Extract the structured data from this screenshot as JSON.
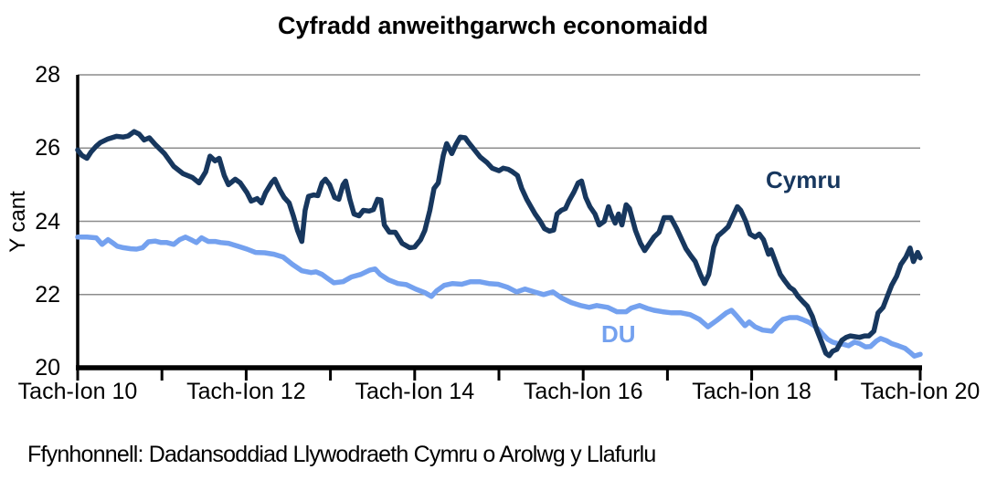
{
  "chart_data": {
    "type": "line",
    "title": "Cyfradd anweithgarwch economaidd",
    "ylabel": "Y cant",
    "source": "Ffynhonnell: Dadansoddiad Llywodraeth Cymru o Arolwg y Llafurlu",
    "xlim": [
      10,
      20
    ],
    "ylim": [
      20,
      28
    ],
    "y_ticks": [
      20,
      22,
      24,
      26,
      28
    ],
    "x_minor_tick_step": 1,
    "x_tick_labels": [
      {
        "t": 10,
        "label": "Tach-Ion 10"
      },
      {
        "t": 12,
        "label": "Tach-Ion 12"
      },
      {
        "t": 14,
        "label": "Tach-Ion 14"
      },
      {
        "t": 16,
        "label": "Tach-Ion 16"
      },
      {
        "t": 18,
        "label": "Tach-Ion 18"
      },
      {
        "t": 20,
        "label": "Tach-Ion 20"
      }
    ],
    "gridline_color": "#8C8C8C",
    "axis_color": "#000000",
    "legend_position": "inline-labels",
    "grid": true,
    "series": [
      {
        "name": "Cymru",
        "color": "#17375E",
        "points": [
          [
            10.0,
            25.95
          ],
          [
            10.05,
            25.8
          ],
          [
            10.11,
            25.72
          ],
          [
            10.16,
            25.9
          ],
          [
            10.22,
            26.05
          ],
          [
            10.27,
            26.15
          ],
          [
            10.36,
            26.25
          ],
          [
            10.46,
            26.32
          ],
          [
            10.54,
            26.3
          ],
          [
            10.6,
            26.33
          ],
          [
            10.67,
            26.45
          ],
          [
            10.73,
            26.38
          ],
          [
            10.79,
            26.22
          ],
          [
            10.85,
            26.28
          ],
          [
            10.92,
            26.1
          ],
          [
            11.03,
            25.85
          ],
          [
            11.14,
            25.5
          ],
          [
            11.25,
            25.3
          ],
          [
            11.36,
            25.2
          ],
          [
            11.44,
            25.05
          ],
          [
            11.52,
            25.35
          ],
          [
            11.57,
            25.78
          ],
          [
            11.63,
            25.65
          ],
          [
            11.68,
            25.72
          ],
          [
            11.74,
            25.25
          ],
          [
            11.79,
            25.0
          ],
          [
            11.87,
            25.15
          ],
          [
            11.93,
            25.05
          ],
          [
            12.01,
            24.78
          ],
          [
            12.06,
            24.55
          ],
          [
            12.13,
            24.62
          ],
          [
            12.18,
            24.5
          ],
          [
            12.23,
            24.78
          ],
          [
            12.3,
            25.05
          ],
          [
            12.34,
            25.15
          ],
          [
            12.4,
            24.85
          ],
          [
            12.45,
            24.65
          ],
          [
            12.51,
            24.5
          ],
          [
            12.56,
            24.15
          ],
          [
            12.61,
            23.75
          ],
          [
            12.66,
            23.45
          ],
          [
            12.7,
            24.3
          ],
          [
            12.74,
            24.68
          ],
          [
            12.8,
            24.72
          ],
          [
            12.85,
            24.7
          ],
          [
            12.9,
            25.05
          ],
          [
            12.94,
            25.15
          ],
          [
            12.99,
            25.0
          ],
          [
            13.05,
            24.65
          ],
          [
            13.1,
            24.6
          ],
          [
            13.15,
            25.0
          ],
          [
            13.18,
            25.1
          ],
          [
            13.23,
            24.6
          ],
          [
            13.28,
            24.2
          ],
          [
            13.34,
            24.15
          ],
          [
            13.39,
            24.3
          ],
          [
            13.46,
            24.28
          ],
          [
            13.51,
            24.32
          ],
          [
            13.56,
            24.6
          ],
          [
            13.6,
            24.58
          ],
          [
            13.64,
            23.9
          ],
          [
            13.7,
            23.7
          ],
          [
            13.77,
            23.7
          ],
          [
            13.85,
            23.4
          ],
          [
            13.94,
            23.28
          ],
          [
            14.0,
            23.3
          ],
          [
            14.07,
            23.5
          ],
          [
            14.12,
            23.75
          ],
          [
            14.18,
            24.3
          ],
          [
            14.23,
            24.9
          ],
          [
            14.28,
            25.05
          ],
          [
            14.34,
            25.8
          ],
          [
            14.38,
            26.12
          ],
          [
            14.44,
            25.85
          ],
          [
            14.49,
            26.1
          ],
          [
            14.54,
            26.3
          ],
          [
            14.6,
            26.28
          ],
          [
            14.64,
            26.15
          ],
          [
            14.71,
            25.95
          ],
          [
            14.78,
            25.75
          ],
          [
            14.86,
            25.6
          ],
          [
            14.92,
            25.45
          ],
          [
            15.0,
            25.38
          ],
          [
            15.05,
            25.45
          ],
          [
            15.11,
            25.42
          ],
          [
            15.16,
            25.35
          ],
          [
            15.22,
            25.25
          ],
          [
            15.27,
            24.9
          ],
          [
            15.33,
            24.6
          ],
          [
            15.38,
            24.4
          ],
          [
            15.43,
            24.2
          ],
          [
            15.49,
            24.0
          ],
          [
            15.54,
            23.8
          ],
          [
            15.6,
            23.73
          ],
          [
            15.65,
            23.76
          ],
          [
            15.69,
            24.2
          ],
          [
            15.74,
            24.3
          ],
          [
            15.79,
            24.35
          ],
          [
            15.83,
            24.55
          ],
          [
            15.89,
            24.8
          ],
          [
            15.94,
            25.05
          ],
          [
            15.98,
            25.1
          ],
          [
            16.03,
            24.65
          ],
          [
            16.08,
            24.4
          ],
          [
            16.14,
            24.2
          ],
          [
            16.19,
            23.9
          ],
          [
            16.25,
            24.0
          ],
          [
            16.3,
            24.4
          ],
          [
            16.33,
            24.2
          ],
          [
            16.38,
            23.95
          ],
          [
            16.42,
            24.2
          ],
          [
            16.46,
            23.9
          ],
          [
            16.51,
            24.45
          ],
          [
            16.55,
            24.35
          ],
          [
            16.62,
            23.75
          ],
          [
            16.68,
            23.4
          ],
          [
            16.73,
            23.2
          ],
          [
            16.79,
            23.4
          ],
          [
            16.84,
            23.57
          ],
          [
            16.9,
            23.7
          ],
          [
            16.96,
            24.1
          ],
          [
            17.04,
            24.1
          ],
          [
            17.11,
            23.8
          ],
          [
            17.17,
            23.5
          ],
          [
            17.22,
            23.25
          ],
          [
            17.28,
            23.05
          ],
          [
            17.33,
            22.9
          ],
          [
            17.39,
            22.55
          ],
          [
            17.44,
            22.3
          ],
          [
            17.49,
            22.55
          ],
          [
            17.55,
            23.3
          ],
          [
            17.6,
            23.6
          ],
          [
            17.66,
            23.72
          ],
          [
            17.72,
            23.85
          ],
          [
            17.78,
            24.15
          ],
          [
            17.83,
            24.4
          ],
          [
            17.87,
            24.3
          ],
          [
            17.93,
            24.0
          ],
          [
            17.98,
            23.65
          ],
          [
            18.04,
            23.57
          ],
          [
            18.09,
            23.65
          ],
          [
            18.14,
            23.5
          ],
          [
            18.2,
            23.1
          ],
          [
            18.23,
            23.22
          ],
          [
            18.29,
            22.85
          ],
          [
            18.34,
            22.55
          ],
          [
            18.39,
            22.38
          ],
          [
            18.45,
            22.2
          ],
          [
            18.5,
            22.12
          ],
          [
            18.55,
            21.95
          ],
          [
            18.61,
            21.8
          ],
          [
            18.66,
            21.68
          ],
          [
            18.72,
            21.4
          ],
          [
            18.77,
            21.05
          ],
          [
            18.83,
            20.7
          ],
          [
            18.88,
            20.4
          ],
          [
            18.92,
            20.33
          ],
          [
            18.96,
            20.45
          ],
          [
            19.01,
            20.5
          ],
          [
            19.07,
            20.75
          ],
          [
            19.12,
            20.83
          ],
          [
            19.17,
            20.87
          ],
          [
            19.28,
            20.83
          ],
          [
            19.34,
            20.87
          ],
          [
            19.39,
            20.87
          ],
          [
            19.45,
            21.0
          ],
          [
            19.5,
            21.5
          ],
          [
            19.56,
            21.65
          ],
          [
            19.61,
            21.95
          ],
          [
            19.66,
            22.25
          ],
          [
            19.72,
            22.5
          ],
          [
            19.77,
            22.82
          ],
          [
            19.83,
            23.02
          ],
          [
            19.88,
            23.27
          ],
          [
            19.92,
            22.9
          ],
          [
            19.97,
            23.15
          ],
          [
            20.0,
            23.0
          ]
        ]
      },
      {
        "name": "DU",
        "color": "#74A1EF",
        "points": [
          [
            10.0,
            23.57
          ],
          [
            10.11,
            23.57
          ],
          [
            10.22,
            23.55
          ],
          [
            10.29,
            23.37
          ],
          [
            10.36,
            23.5
          ],
          [
            10.41,
            23.42
          ],
          [
            10.47,
            23.32
          ],
          [
            10.54,
            23.28
          ],
          [
            10.63,
            23.25
          ],
          [
            10.7,
            23.24
          ],
          [
            10.77,
            23.28
          ],
          [
            10.84,
            23.44
          ],
          [
            10.92,
            23.46
          ],
          [
            10.99,
            23.42
          ],
          [
            11.06,
            23.42
          ],
          [
            11.14,
            23.37
          ],
          [
            11.21,
            23.5
          ],
          [
            11.28,
            23.57
          ],
          [
            11.36,
            23.48
          ],
          [
            11.41,
            23.42
          ],
          [
            11.47,
            23.55
          ],
          [
            11.55,
            23.45
          ],
          [
            11.63,
            23.45
          ],
          [
            11.7,
            23.42
          ],
          [
            11.79,
            23.4
          ],
          [
            11.9,
            23.32
          ],
          [
            12.01,
            23.24
          ],
          [
            12.11,
            23.15
          ],
          [
            12.22,
            23.14
          ],
          [
            12.33,
            23.1
          ],
          [
            12.44,
            23.02
          ],
          [
            12.55,
            22.82
          ],
          [
            12.66,
            22.65
          ],
          [
            12.77,
            22.6
          ],
          [
            12.83,
            22.62
          ],
          [
            12.9,
            22.55
          ],
          [
            12.96,
            22.45
          ],
          [
            13.04,
            22.32
          ],
          [
            13.15,
            22.35
          ],
          [
            13.25,
            22.48
          ],
          [
            13.36,
            22.55
          ],
          [
            13.47,
            22.67
          ],
          [
            13.53,
            22.7
          ],
          [
            13.59,
            22.55
          ],
          [
            13.69,
            22.4
          ],
          [
            13.8,
            22.3
          ],
          [
            13.9,
            22.27
          ],
          [
            14.01,
            22.15
          ],
          [
            14.12,
            22.05
          ],
          [
            14.2,
            21.95
          ],
          [
            14.26,
            22.1
          ],
          [
            14.35,
            22.25
          ],
          [
            14.45,
            22.3
          ],
          [
            14.56,
            22.28
          ],
          [
            14.66,
            22.35
          ],
          [
            14.77,
            22.35
          ],
          [
            14.88,
            22.3
          ],
          [
            14.99,
            22.28
          ],
          [
            15.1,
            22.2
          ],
          [
            15.21,
            22.07
          ],
          [
            15.31,
            22.15
          ],
          [
            15.42,
            22.07
          ],
          [
            15.53,
            22.0
          ],
          [
            15.64,
            22.07
          ],
          [
            15.75,
            21.9
          ],
          [
            15.86,
            21.78
          ],
          [
            15.97,
            21.7
          ],
          [
            16.07,
            21.65
          ],
          [
            16.16,
            21.7
          ],
          [
            16.29,
            21.65
          ],
          [
            16.4,
            21.53
          ],
          [
            16.51,
            21.53
          ],
          [
            16.57,
            21.63
          ],
          [
            16.67,
            21.7
          ],
          [
            16.76,
            21.62
          ],
          [
            16.84,
            21.57
          ],
          [
            16.94,
            21.53
          ],
          [
            17.05,
            21.5
          ],
          [
            17.16,
            21.5
          ],
          [
            17.27,
            21.45
          ],
          [
            17.38,
            21.32
          ],
          [
            17.48,
            21.12
          ],
          [
            17.59,
            21.3
          ],
          [
            17.7,
            21.5
          ],
          [
            17.76,
            21.57
          ],
          [
            17.82,
            21.42
          ],
          [
            17.92,
            21.15
          ],
          [
            17.97,
            21.25
          ],
          [
            18.04,
            21.12
          ],
          [
            18.13,
            21.03
          ],
          [
            18.24,
            21.0
          ],
          [
            18.31,
            21.2
          ],
          [
            18.37,
            21.32
          ],
          [
            18.45,
            21.37
          ],
          [
            18.54,
            21.37
          ],
          [
            18.6,
            21.32
          ],
          [
            18.68,
            21.24
          ],
          [
            18.74,
            21.15
          ],
          [
            18.8,
            21.03
          ],
          [
            18.85,
            20.9
          ],
          [
            18.9,
            20.78
          ],
          [
            18.96,
            20.7
          ],
          [
            19.02,
            20.66
          ],
          [
            19.09,
            20.64
          ],
          [
            19.15,
            20.6
          ],
          [
            19.22,
            20.7
          ],
          [
            19.28,
            20.66
          ],
          [
            19.35,
            20.57
          ],
          [
            19.41,
            20.58
          ],
          [
            19.48,
            20.73
          ],
          [
            19.53,
            20.8
          ],
          [
            19.6,
            20.74
          ],
          [
            19.66,
            20.66
          ],
          [
            19.74,
            20.6
          ],
          [
            19.82,
            20.53
          ],
          [
            19.88,
            20.42
          ],
          [
            19.93,
            20.32
          ],
          [
            20.0,
            20.37
          ]
        ]
      }
    ]
  }
}
